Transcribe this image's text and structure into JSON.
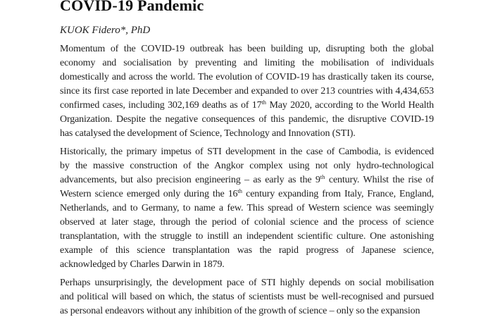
{
  "page": {
    "background": "#ffffff",
    "text_color": "#1e1e1e"
  },
  "document": {
    "title": "COVID-19 Pandemic",
    "byline": "KUOK Fidero*, PhD",
    "paragraphs": [
      {
        "lines": [
          {
            "segments": [
              {
                "text": "Momentum of the COVID-19 outbreak has been building up, disrupting both the global"
              }
            ]
          },
          {
            "segments": [
              {
                "text": "economy and socialisation by preventing and limiting the mobilisation of individuals"
              }
            ]
          },
          {
            "segments": [
              {
                "text": "domestically and across the world. The evolution of COVID-19 has drastically taken its course,"
              }
            ]
          },
          {
            "segments": [
              {
                "text": "since its first case reported in late December and expanded to over 213 countries with 4,434,653"
              }
            ]
          },
          {
            "segments": [
              {
                "text": "confirmed cases, including 302,169 deaths as of 17"
              },
              {
                "sup": "th"
              },
              {
                "text": " May 2020, according to the World Health"
              }
            ]
          },
          {
            "segments": [
              {
                "text": "Organization. Despite the negative consequences of this pandemic, the disruptive COVID-19"
              }
            ]
          },
          {
            "segments": [
              {
                "text": "has catalysed the development of Science, Technology and Innovation (STI)."
              }
            ],
            "last": true
          }
        ]
      },
      {
        "lines": [
          {
            "segments": [
              {
                "text": "Historically, the primary impetus of STI development in the case of Cambodia, is evidenced"
              }
            ]
          },
          {
            "segments": [
              {
                "text": "by the massive construction of the Angkor complex using not only hydro-technological"
              }
            ]
          },
          {
            "segments": [
              {
                "text": "advancements, but also precision engineering – as early as the 9"
              },
              {
                "sup": "th"
              },
              {
                "text": " century. Whilst the rise of"
              }
            ]
          },
          {
            "segments": [
              {
                "text": "Western science emerged only during the 16"
              },
              {
                "sup": "th"
              },
              {
                "text": " century expanding from Italy, France, England,"
              }
            ]
          },
          {
            "segments": [
              {
                "text": "Netherlands, and to Germany, to name a few. This spread of Western science was seemingly"
              }
            ]
          },
          {
            "segments": [
              {
                "text": "observed at later stage, through the period of colonial science and the process of science"
              }
            ]
          },
          {
            "segments": [
              {
                "text": "transplantation, with the struggle to instill an independent scientific culture. One astonishing"
              }
            ]
          },
          {
            "segments": [
              {
                "text": "example of this science transplantation was the rapid progress of Japanese science,"
              }
            ]
          },
          {
            "segments": [
              {
                "text": "acknowledged by Charles Darwin in 1879."
              }
            ],
            "last": true
          }
        ]
      },
      {
        "lines": [
          {
            "segments": [
              {
                "text": "Perhaps unsurprisingly, the development pace of STI highly depends on social mobilisation"
              }
            ]
          },
          {
            "segments": [
              {
                "text": "and political will based on which, the status of scientists must be well-recognised and pursued"
              }
            ]
          },
          {
            "segments": [
              {
                "text": "as personal endeavors without any inhibition of the growth of science – only so the expansion"
              }
            ],
            "last": true
          }
        ]
      }
    ]
  }
}
